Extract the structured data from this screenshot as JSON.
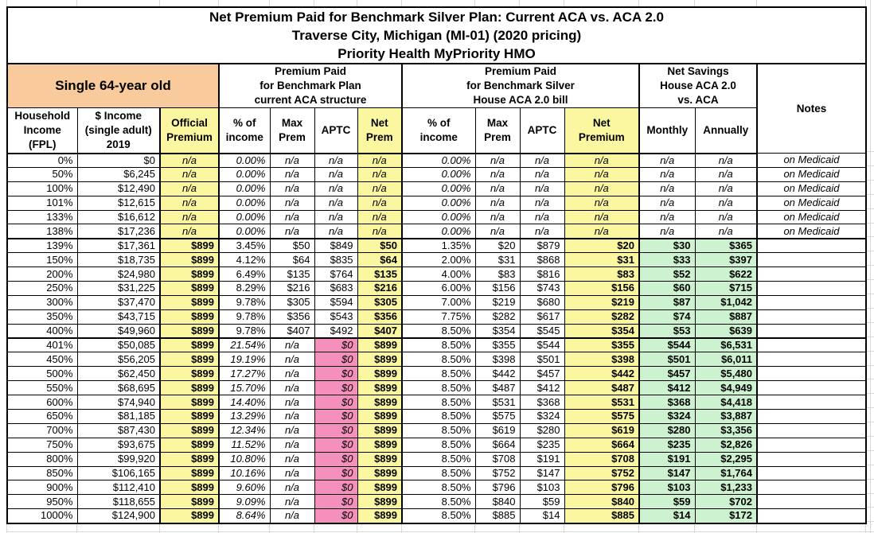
{
  "title": {
    "lines": [
      "Net Premium Paid for Benchmark Silver Plan: Current ACA vs. ACA 2.0",
      "Traverse City, Michigan (MI-01) (2020 pricing)",
      "Priority Health MyPriority HMO"
    ]
  },
  "group_headers": {
    "subject": "Single 64-year old",
    "current_aca": [
      "Premium Paid",
      "for Benchmark Plan",
      "current ACA structure"
    ],
    "aca2": [
      "Premium Paid",
      "for Benchmark Silver",
      "House ACA 2.0 bill"
    ],
    "savings": [
      "Net Savings",
      "House ACA 2.0",
      "vs. ACA"
    ],
    "notes": "Notes"
  },
  "column_headers": {
    "fpl": [
      "Household",
      "Income",
      "(FPL)"
    ],
    "income": [
      "$ Income",
      "(single adult)",
      "2019"
    ],
    "official": [
      "Official",
      "Premium"
    ],
    "pct1": [
      "% of",
      "income"
    ],
    "max1": [
      "Max",
      "Prem"
    ],
    "aptc1": "APTC",
    "net1": [
      "Net",
      "Prem"
    ],
    "pct2": [
      "% of",
      "income"
    ],
    "max2": [
      "Max",
      "Prem"
    ],
    "aptc2": "APTC",
    "net2": [
      "Net",
      "Premium"
    ],
    "monthly": "Monthly",
    "annually": "Annually"
  },
  "colors": {
    "orange": "#F9CB9C",
    "yellow": "#FBF7A0",
    "pink": "#F58FBC",
    "green": "#CDF2CF",
    "gridline": "#D8D8D8",
    "border": "#000000"
  },
  "rows": [
    {
      "group": "medicaid",
      "fpl": "0%",
      "income": "$0",
      "official": "n/a",
      "pct1": "0.00%",
      "max1": "n/a",
      "aptc1": "n/a",
      "net1": "n/a",
      "pct2": "0.00%",
      "max2": "n/a",
      "aptc2": "n/a",
      "net2": "n/a",
      "monthly": "n/a",
      "annually": "n/a",
      "notes": "on Medicaid"
    },
    {
      "group": "medicaid",
      "fpl": "50%",
      "income": "$6,245",
      "official": "n/a",
      "pct1": "0.00%",
      "max1": "n/a",
      "aptc1": "n/a",
      "net1": "n/a",
      "pct2": "0.00%",
      "max2": "n/a",
      "aptc2": "n/a",
      "net2": "n/a",
      "monthly": "n/a",
      "annually": "n/a",
      "notes": "on Medicaid"
    },
    {
      "group": "medicaid",
      "fpl": "100%",
      "income": "$12,490",
      "official": "n/a",
      "pct1": "0.00%",
      "max1": "n/a",
      "aptc1": "n/a",
      "net1": "n/a",
      "pct2": "0.00%",
      "max2": "n/a",
      "aptc2": "n/a",
      "net2": "n/a",
      "monthly": "n/a",
      "annually": "n/a",
      "notes": "on Medicaid"
    },
    {
      "group": "medicaid",
      "fpl": "101%",
      "income": "$12,615",
      "official": "n/a",
      "pct1": "0.00%",
      "max1": "n/a",
      "aptc1": "n/a",
      "net1": "n/a",
      "pct2": "0.00%",
      "max2": "n/a",
      "aptc2": "n/a",
      "net2": "n/a",
      "monthly": "n/a",
      "annually": "n/a",
      "notes": "on Medicaid"
    },
    {
      "group": "medicaid",
      "fpl": "133%",
      "income": "$16,612",
      "official": "n/a",
      "pct1": "0.00%",
      "max1": "n/a",
      "aptc1": "n/a",
      "net1": "n/a",
      "pct2": "0.00%",
      "max2": "n/a",
      "aptc2": "n/a",
      "net2": "n/a",
      "monthly": "n/a",
      "annually": "n/a",
      "notes": "on Medicaid"
    },
    {
      "group": "medicaid",
      "fpl": "138%",
      "income": "$17,236",
      "official": "n/a",
      "pct1": "0.00%",
      "max1": "n/a",
      "aptc1": "n/a",
      "net1": "n/a",
      "pct2": "0.00%",
      "max2": "n/a",
      "aptc2": "n/a",
      "net2": "n/a",
      "monthly": "n/a",
      "annually": "n/a",
      "notes": "on Medicaid"
    },
    {
      "group": "aca",
      "fpl": "139%",
      "income": "$17,361",
      "official": "$899",
      "pct1": "3.45%",
      "max1": "$50",
      "aptc1": "$849",
      "net1": "$50",
      "pct2": "1.35%",
      "max2": "$20",
      "aptc2": "$879",
      "net2": "$20",
      "monthly": "$30",
      "annually": "$365",
      "notes": ""
    },
    {
      "group": "aca",
      "fpl": "150%",
      "income": "$18,735",
      "official": "$899",
      "pct1": "4.12%",
      "max1": "$64",
      "aptc1": "$835",
      "net1": "$64",
      "pct2": "2.00%",
      "max2": "$31",
      "aptc2": "$868",
      "net2": "$31",
      "monthly": "$33",
      "annually": "$397",
      "notes": ""
    },
    {
      "group": "aca",
      "fpl": "200%",
      "income": "$24,980",
      "official": "$899",
      "pct1": "6.49%",
      "max1": "$135",
      "aptc1": "$764",
      "net1": "$135",
      "pct2": "4.00%",
      "max2": "$83",
      "aptc2": "$816",
      "net2": "$83",
      "monthly": "$52",
      "annually": "$622",
      "notes": ""
    },
    {
      "group": "aca",
      "fpl": "250%",
      "income": "$31,225",
      "official": "$899",
      "pct1": "8.29%",
      "max1": "$216",
      "aptc1": "$683",
      "net1": "$216",
      "pct2": "6.00%",
      "max2": "$156",
      "aptc2": "$743",
      "net2": "$156",
      "monthly": "$60",
      "annually": "$715",
      "notes": ""
    },
    {
      "group": "aca",
      "fpl": "300%",
      "income": "$37,470",
      "official": "$899",
      "pct1": "9.78%",
      "max1": "$305",
      "aptc1": "$594",
      "net1": "$305",
      "pct2": "7.00%",
      "max2": "$219",
      "aptc2": "$680",
      "net2": "$219",
      "monthly": "$87",
      "annually": "$1,042",
      "notes": ""
    },
    {
      "group": "aca",
      "fpl": "350%",
      "income": "$43,715",
      "official": "$899",
      "pct1": "9.78%",
      "max1": "$356",
      "aptc1": "$543",
      "net1": "$356",
      "pct2": "7.75%",
      "max2": "$282",
      "aptc2": "$617",
      "net2": "$282",
      "monthly": "$74",
      "annually": "$887",
      "notes": ""
    },
    {
      "group": "aca",
      "fpl": "400%",
      "income": "$49,960",
      "official": "$899",
      "pct1": "9.78%",
      "max1": "$407",
      "aptc1": "$492",
      "net1": "$407",
      "pct2": "8.50%",
      "max2": "$354",
      "aptc2": "$545",
      "net2": "$354",
      "monthly": "$53",
      "annually": "$639",
      "notes": ""
    },
    {
      "group": "above400",
      "fpl": "401%",
      "income": "$50,085",
      "official": "$899",
      "pct1": "21.54%",
      "max1": "n/a",
      "aptc1": "$0",
      "net1": "$899",
      "pct2": "8.50%",
      "max2": "$355",
      "aptc2": "$544",
      "net2": "$355",
      "monthly": "$544",
      "annually": "$6,531",
      "notes": ""
    },
    {
      "group": "above400",
      "fpl": "450%",
      "income": "$56,205",
      "official": "$899",
      "pct1": "19.19%",
      "max1": "n/a",
      "aptc1": "$0",
      "net1": "$899",
      "pct2": "8.50%",
      "max2": "$398",
      "aptc2": "$501",
      "net2": "$398",
      "monthly": "$501",
      "annually": "$6,011",
      "notes": ""
    },
    {
      "group": "above400",
      "fpl": "500%",
      "income": "$62,450",
      "official": "$899",
      "pct1": "17.27%",
      "max1": "n/a",
      "aptc1": "$0",
      "net1": "$899",
      "pct2": "8.50%",
      "max2": "$442",
      "aptc2": "$457",
      "net2": "$442",
      "monthly": "$457",
      "annually": "$5,480",
      "notes": ""
    },
    {
      "group": "above400",
      "fpl": "550%",
      "income": "$68,695",
      "official": "$899",
      "pct1": "15.70%",
      "max1": "n/a",
      "aptc1": "$0",
      "net1": "$899",
      "pct2": "8.50%",
      "max2": "$487",
      "aptc2": "$412",
      "net2": "$487",
      "monthly": "$412",
      "annually": "$4,949",
      "notes": ""
    },
    {
      "group": "above400",
      "fpl": "600%",
      "income": "$74,940",
      "official": "$899",
      "pct1": "14.40%",
      "max1": "n/a",
      "aptc1": "$0",
      "net1": "$899",
      "pct2": "8.50%",
      "max2": "$531",
      "aptc2": "$368",
      "net2": "$531",
      "monthly": "$368",
      "annually": "$4,418",
      "notes": ""
    },
    {
      "group": "above400",
      "fpl": "650%",
      "income": "$81,185",
      "official": "$899",
      "pct1": "13.29%",
      "max1": "n/a",
      "aptc1": "$0",
      "net1": "$899",
      "pct2": "8.50%",
      "max2": "$575",
      "aptc2": "$324",
      "net2": "$575",
      "monthly": "$324",
      "annually": "$3,887",
      "notes": ""
    },
    {
      "group": "above400",
      "fpl": "700%",
      "income": "$87,430",
      "official": "$899",
      "pct1": "12.34%",
      "max1": "n/a",
      "aptc1": "$0",
      "net1": "$899",
      "pct2": "8.50%",
      "max2": "$619",
      "aptc2": "$280",
      "net2": "$619",
      "monthly": "$280",
      "annually": "$3,356",
      "notes": ""
    },
    {
      "group": "above400",
      "fpl": "750%",
      "income": "$93,675",
      "official": "$899",
      "pct1": "11.52%",
      "max1": "n/a",
      "aptc1": "$0",
      "net1": "$899",
      "pct2": "8.50%",
      "max2": "$664",
      "aptc2": "$235",
      "net2": "$664",
      "monthly": "$235",
      "annually": "$2,826",
      "notes": ""
    },
    {
      "group": "above400",
      "fpl": "800%",
      "income": "$99,920",
      "official": "$899",
      "pct1": "10.80%",
      "max1": "n/a",
      "aptc1": "$0",
      "net1": "$899",
      "pct2": "8.50%",
      "max2": "$708",
      "aptc2": "$191",
      "net2": "$708",
      "monthly": "$191",
      "annually": "$2,295",
      "notes": ""
    },
    {
      "group": "above400",
      "fpl": "850%",
      "income": "$106,165",
      "official": "$899",
      "pct1": "10.16%",
      "max1": "n/a",
      "aptc1": "$0",
      "net1": "$899",
      "pct2": "8.50%",
      "max2": "$752",
      "aptc2": "$147",
      "net2": "$752",
      "monthly": "$147",
      "annually": "$1,764",
      "notes": ""
    },
    {
      "group": "above400",
      "fpl": "900%",
      "income": "$112,410",
      "official": "$899",
      "pct1": "9.60%",
      "max1": "n/a",
      "aptc1": "$0",
      "net1": "$899",
      "pct2": "8.50%",
      "max2": "$796",
      "aptc2": "$103",
      "net2": "$796",
      "monthly": "$103",
      "annually": "$1,233",
      "notes": ""
    },
    {
      "group": "above400",
      "fpl": "950%",
      "income": "$118,655",
      "official": "$899",
      "pct1": "9.09%",
      "max1": "n/a",
      "aptc1": "$0",
      "net1": "$899",
      "pct2": "8.50%",
      "max2": "$840",
      "aptc2": "$59",
      "net2": "$840",
      "monthly": "$59",
      "annually": "$702",
      "notes": ""
    },
    {
      "group": "above400",
      "fpl": "1000%",
      "income": "$124,900",
      "official": "$899",
      "pct1": "8.64%",
      "max1": "n/a",
      "aptc1": "$0",
      "net1": "$899",
      "pct2": "8.50%",
      "max2": "$885",
      "aptc2": "$14",
      "net2": "$885",
      "monthly": "$14",
      "annually": "$172",
      "notes": ""
    }
  ]
}
